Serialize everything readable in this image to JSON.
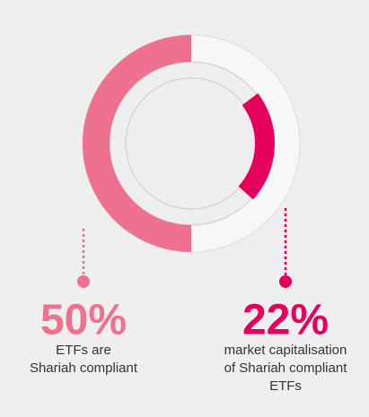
{
  "chart_data": {
    "type": "radial",
    "values": [
      50,
      22
    ],
    "value_labels": [
      "50%",
      "22%"
    ],
    "colors": [
      "#ef7190",
      "#e4005c"
    ],
    "ylim": [
      0,
      100
    ],
    "descriptions": [
      [
        "ETFs are",
        "Shariah compliant"
      ],
      [
        "market capitalisation",
        "of Shariah compliant",
        "ETFs"
      ]
    ]
  }
}
